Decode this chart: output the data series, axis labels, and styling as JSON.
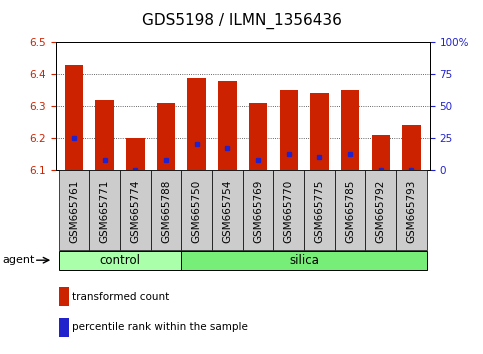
{
  "title": "GDS5198 / ILMN_1356436",
  "samples": [
    "GSM665761",
    "GSM665771",
    "GSM665774",
    "GSM665788",
    "GSM665750",
    "GSM665754",
    "GSM665769",
    "GSM665770",
    "GSM665775",
    "GSM665785",
    "GSM665792",
    "GSM665793"
  ],
  "groups": [
    "control",
    "control",
    "control",
    "control",
    "silica",
    "silica",
    "silica",
    "silica",
    "silica",
    "silica",
    "silica",
    "silica"
  ],
  "transformed_count": [
    6.43,
    6.32,
    6.2,
    6.31,
    6.39,
    6.38,
    6.31,
    6.35,
    6.34,
    6.35,
    6.21,
    6.24
  ],
  "percentile_rank": [
    6.2,
    6.13,
    6.1,
    6.13,
    6.18,
    6.17,
    6.13,
    6.15,
    6.14,
    6.15,
    6.1,
    6.1
  ],
  "ylim_left": [
    6.1,
    6.5
  ],
  "ylim_right": [
    0,
    100
  ],
  "bar_color": "#cc2200",
  "dot_color": "#2222cc",
  "grid_color": "#000000",
  "control_color": "#aaffaa",
  "silica_color": "#77ee77",
  "tick_bg_color": "#cccccc",
  "agent_label": "agent",
  "control_label": "control",
  "silica_label": "silica",
  "legend_bar_label": "transformed count",
  "legend_dot_label": "percentile rank within the sample",
  "bar_bottom": 6.1,
  "bar_width": 0.6,
  "title_fontsize": 11,
  "tick_fontsize": 7.5,
  "group_fontsize": 8.5,
  "legend_fontsize": 7.5,
  "agent_fontsize": 8,
  "n_control": 4,
  "n_silica": 8
}
